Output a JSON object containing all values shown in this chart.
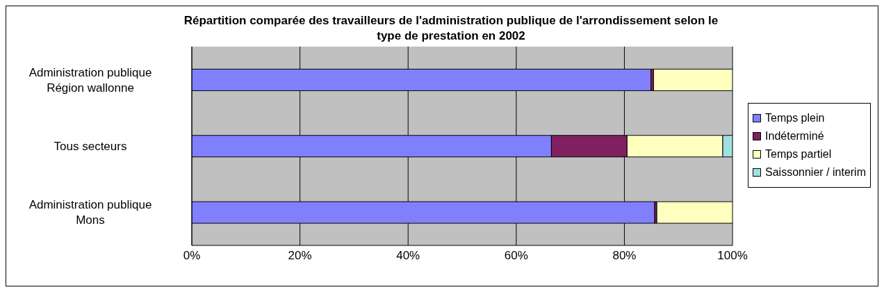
{
  "chart_data": {
    "type": "bar",
    "orientation": "horizontal",
    "stacked": true,
    "title": "Répartition comparée des travailleurs de l'administration publique de l'arrondissement selon le type de prestation en 2002",
    "categories": [
      "Administration publique\nRégion wallonne",
      "Tous secteurs",
      "Administration publique\nMons"
    ],
    "series": [
      {
        "name": "Temps plein",
        "color": "#8080ff",
        "values": [
          84.9,
          66.5,
          85.6
        ]
      },
      {
        "name": "Indéterminé",
        "color": "#802060",
        "values": [
          0.5,
          14.0,
          0.4
        ]
      },
      {
        "name": "Temps partiel",
        "color": "#ffffc0",
        "values": [
          14.6,
          17.7,
          14.0
        ]
      },
      {
        "name": "Saissonnier / interim",
        "color": "#a0e0e0",
        "values": [
          null,
          1.8,
          null
        ]
      }
    ],
    "xlim": [
      0,
      100
    ],
    "xticks": [
      {
        "value": 0,
        "label": "0%"
      },
      {
        "value": 20,
        "label": "20%"
      },
      {
        "value": 40,
        "label": "40%"
      },
      {
        "value": 60,
        "label": "60%"
      },
      {
        "value": 80,
        "label": "80%"
      },
      {
        "value": 100,
        "label": "100%"
      }
    ],
    "grid": "x",
    "legend": "right"
  }
}
